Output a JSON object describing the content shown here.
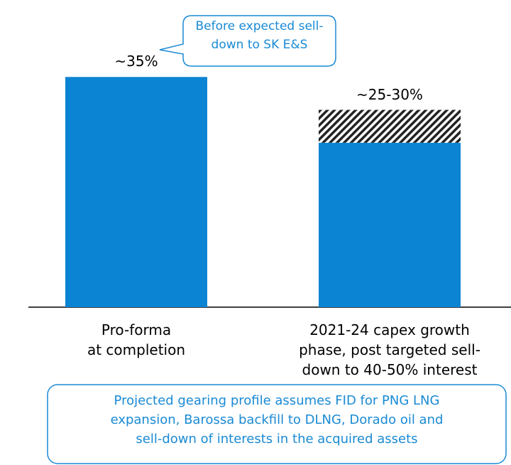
{
  "chart_data": {
    "type": "bar",
    "stacked": true,
    "categories": [
      "Pro-forma\nat completion",
      "2021-24 capex growth\nphase, post targeted sell-\ndown to 40-50% interest"
    ],
    "series": [
      {
        "color": "#0b84d4",
        "values": [
          35,
          25
        ],
        "value_labels": [
          "~35%",
          "~25-30%"
        ]
      },
      {
        "pattern": "hatch",
        "color": "#222222",
        "values": [
          null,
          5
        ]
      }
    ],
    "ylim": [
      0,
      40
    ],
    "annotations": [
      {
        "text": "Before expected sell-\ndown to SK E&S"
      },
      {
        "text": "Projected gearing profile assumes FID for PNG LNG\nexpansion, Barossa backfill to DLNG, Dorado oil and\nsell-down of interests in the acquired assets"
      }
    ]
  }
}
